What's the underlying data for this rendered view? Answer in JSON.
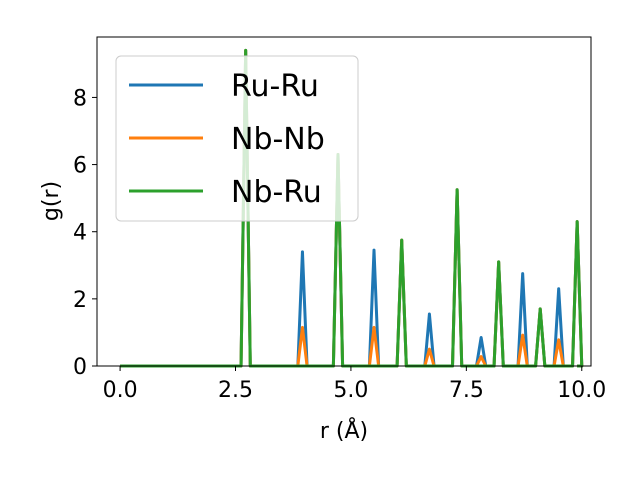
{
  "chart_data": {
    "type": "line",
    "xlabel": "r (Å)",
    "ylabel": "g(r)",
    "xlim": [
      -0.5,
      10.2
    ],
    "ylim": [
      0,
      9.8
    ],
    "xticks": [
      0.0,
      2.5,
      5.0,
      7.5,
      10.0
    ],
    "xtick_labels": [
      "0.0",
      "2.5",
      "5.0",
      "7.5",
      "10.0"
    ],
    "yticks": [
      0,
      2,
      4,
      6,
      8
    ],
    "ytick_labels": [
      "0",
      "2",
      "4",
      "6",
      "8"
    ],
    "grid": false,
    "legend_position": "upper-left",
    "peak_half_width": 0.1,
    "series": [
      {
        "name": "Ru-Ru",
        "color": "#1f77b4",
        "peaks": [
          [
            2.72,
            9.4
          ],
          [
            3.95,
            3.4
          ],
          [
            4.72,
            6.3
          ],
          [
            5.5,
            3.45
          ],
          [
            6.1,
            3.75
          ],
          [
            6.7,
            1.55
          ],
          [
            7.3,
            5.25
          ],
          [
            7.82,
            0.85
          ],
          [
            8.2,
            3.1
          ],
          [
            8.72,
            2.75
          ],
          [
            9.1,
            1.7
          ],
          [
            9.5,
            2.3
          ],
          [
            9.9,
            4.3
          ]
        ]
      },
      {
        "name": "Nb-Nb",
        "color": "#ff7f0e",
        "peaks": [
          [
            2.72,
            9.4
          ],
          [
            3.95,
            1.15
          ],
          [
            4.72,
            6.3
          ],
          [
            5.5,
            1.15
          ],
          [
            6.1,
            3.75
          ],
          [
            6.7,
            0.5
          ],
          [
            7.3,
            5.25
          ],
          [
            7.82,
            0.28
          ],
          [
            8.2,
            3.1
          ],
          [
            8.72,
            0.92
          ],
          [
            9.1,
            1.7
          ],
          [
            9.5,
            0.78
          ],
          [
            9.9,
            4.3
          ]
        ]
      },
      {
        "name": "Nb-Ru",
        "color": "#2ca02c",
        "peaks": [
          [
            2.72,
            9.4
          ],
          [
            4.72,
            6.3
          ],
          [
            6.1,
            3.75
          ],
          [
            7.3,
            5.25
          ],
          [
            8.2,
            3.1
          ],
          [
            9.1,
            1.7
          ],
          [
            9.9,
            4.3
          ]
        ]
      }
    ]
  }
}
